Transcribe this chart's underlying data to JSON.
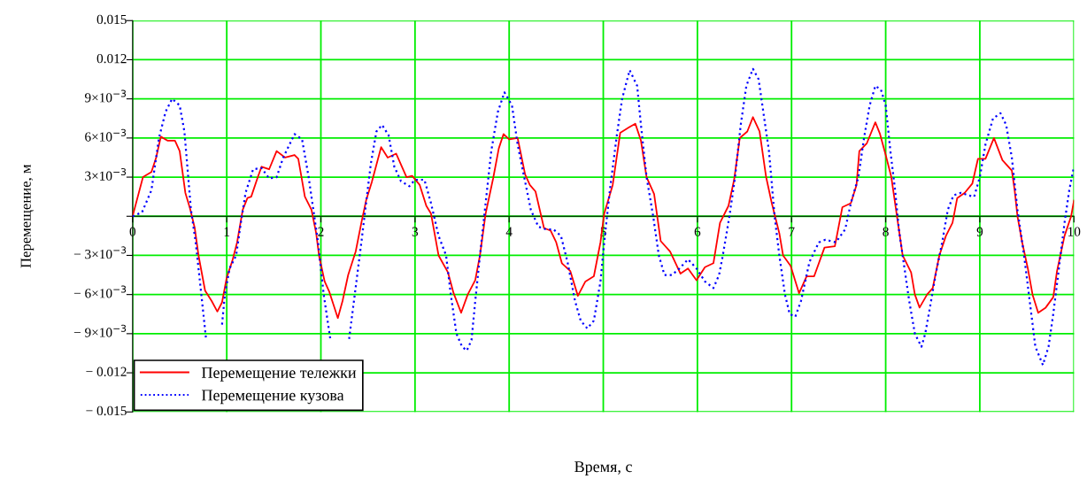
{
  "chart_data": {
    "type": "line",
    "xlabel": "Время, с",
    "ylabel": "Перемещение, м",
    "xlim": [
      0,
      10
    ],
    "xticks": [
      0,
      1,
      2,
      3,
      4,
      5,
      6,
      7,
      8,
      9,
      10
    ],
    "ylim": [
      -0.015,
      0.015
    ],
    "yticks": [
      {
        "value": -0.015,
        "label": "− 0.015"
      },
      {
        "value": -0.012,
        "label": "− 0.012"
      },
      {
        "value": -0.009,
        "label": "− 9×10$^{−3}$"
      },
      {
        "value": -0.006,
        "label": "− 6×10$^{−3}$"
      },
      {
        "value": -0.003,
        "label": "− 3×10$^{−3}$"
      },
      {
        "value": 0,
        "label": null
      },
      {
        "value": 0.003,
        "label": "3×10$^{−3}$"
      },
      {
        "value": 0.006,
        "label": "6×10$^{−3}$"
      },
      {
        "value": 0.009,
        "label": "9×10$^{−3}$"
      },
      {
        "value": 0.012,
        "label": "0.012"
      },
      {
        "value": 0.015,
        "label": "0.015"
      }
    ],
    "grid": true,
    "legend": "bottom left",
    "marker": "none",
    "series": [
      {
        "name": "Перемещение тележки",
        "color": "#ff0000",
        "line_style": "solid",
        "x": [
          0,
          0.11,
          0.2,
          0.25,
          0.3,
          0.37,
          0.45,
          0.5,
          0.56,
          0.61,
          0.66,
          0.7,
          0.77,
          0.84,
          0.9,
          0.95,
          1.0,
          1.06,
          1.11,
          1.17,
          1.22,
          1.26,
          1.33,
          1.37,
          1.45,
          1.53,
          1.62,
          1.72,
          1.76,
          1.83,
          1.9,
          1.95,
          1.98,
          2.04,
          2.09,
          2.18,
          2.23,
          2.29,
          2.37,
          2.43,
          2.48,
          2.54,
          2.64,
          2.71,
          2.8,
          2.91,
          2.97,
          3.05,
          3.12,
          3.17,
          3.25,
          3.35,
          3.41,
          3.49,
          3.56,
          3.64,
          3.69,
          3.75,
          3.83,
          3.89,
          3.94,
          4.0,
          4.09,
          4.17,
          4.22,
          4.28,
          4.37,
          4.44,
          4.5,
          4.56,
          4.65,
          4.73,
          4.81,
          4.9,
          4.97,
          5.01,
          5.1,
          5.18,
          5.27,
          5.34,
          5.4,
          5.46,
          5.54,
          5.61,
          5.71,
          5.82,
          5.9,
          5.99,
          6.08,
          6.17,
          6.24,
          6.33,
          6.39,
          6.45,
          6.53,
          6.59,
          6.66,
          6.73,
          6.79,
          6.87,
          6.91,
          6.99,
          7.08,
          7.16,
          7.24,
          7.35,
          7.46,
          7.54,
          7.63,
          7.69,
          7.72,
          7.8,
          7.89,
          7.94,
          8.0,
          8.06,
          8.12,
          8.18,
          8.27,
          8.31,
          8.36,
          8.44,
          8.5,
          8.57,
          8.64,
          8.71,
          8.76,
          8.84,
          8.92,
          8.98,
          9.06,
          9.15,
          9.24,
          9.34,
          9.37,
          9.4,
          9.45,
          9.51,
          9.56,
          9.62,
          9.7,
          9.78,
          9.82,
          9.9,
          9.97,
          10.0
        ],
        "values": [
          0,
          0.003,
          0.0034,
          0.0045,
          0.0061,
          0.0058,
          0.0058,
          0.005,
          0.0018,
          0.0006,
          -0.0009,
          -0.003,
          -0.0057,
          -0.0065,
          -0.0073,
          -0.0066,
          -0.0047,
          -0.0034,
          -0.002,
          0.0005,
          0.0014,
          0.0015,
          0.003,
          0.0038,
          0.0036,
          0.005,
          0.0045,
          0.0047,
          0.0044,
          0.0015,
          0.0005,
          -0.0013,
          -0.003,
          -0.005,
          -0.0058,
          -0.0078,
          -0.0065,
          -0.0045,
          -0.0027,
          -0.0005,
          0.0012,
          0.0026,
          0.0053,
          0.0045,
          0.0048,
          0.003,
          0.0031,
          0.0024,
          0.0008,
          0.0002,
          -0.003,
          -0.0043,
          -0.0059,
          -0.0074,
          -0.006,
          -0.0049,
          -0.003,
          0.0002,
          0.0029,
          0.0052,
          0.0063,
          0.0059,
          0.006,
          0.0032,
          0.0024,
          0.0019,
          -0.0009,
          -0.0011,
          -0.002,
          -0.0036,
          -0.0042,
          -0.0061,
          -0.005,
          -0.0046,
          -0.002,
          0.0002,
          0.0024,
          0.0064,
          0.0068,
          0.0071,
          0.0058,
          0.003,
          0.0017,
          -0.0019,
          -0.0027,
          -0.0044,
          -0.004,
          -0.0049,
          -0.0039,
          -0.0036,
          -0.0005,
          0.0008,
          0.0028,
          0.006,
          0.0065,
          0.0076,
          0.0065,
          0.003,
          0.001,
          -0.0013,
          -0.003,
          -0.0038,
          -0.0059,
          -0.0046,
          -0.0046,
          -0.0024,
          -0.0023,
          0.0007,
          0.001,
          0.0024,
          0.005,
          0.0056,
          0.0072,
          0.0063,
          0.0047,
          0.003,
          0.0,
          -0.003,
          -0.0043,
          -0.006,
          -0.007,
          -0.006,
          -0.0055,
          -0.003,
          -0.0015,
          -0.0005,
          0.0014,
          0.0018,
          0.0025,
          0.0044,
          0.0044,
          0.006,
          0.0043,
          0.0035,
          0.002,
          0.0,
          -0.002,
          -0.004,
          -0.006,
          -0.0074,
          -0.007,
          -0.0062,
          -0.0042,
          -0.0015,
          0.0,
          0.0012
        ]
      },
      {
        "name": "Перемещение кузова",
        "color": "#0000ff",
        "line_style": "dotted",
        "x": [
          0,
          0.1,
          0.2,
          0.28,
          0.35,
          0.42,
          0.5,
          0.55,
          0.62,
          0.67,
          0.73,
          0.78,
          0.85,
          0.9,
          0.95,
          0.98,
          1.03,
          1.1,
          1.15,
          1.2,
          1.28,
          1.37,
          1.45,
          1.53,
          1.6,
          1.72,
          1.8,
          1.87,
          1.93,
          1.97,
          2.03,
          2.1,
          2.17,
          2.25,
          2.3,
          2.36,
          2.43,
          2.48,
          2.53,
          2.59,
          2.65,
          2.72,
          2.78,
          2.85,
          2.94,
          3.0,
          3.1,
          3.17,
          3.25,
          3.33,
          3.38,
          3.44,
          3.5,
          3.55,
          3.6,
          3.64,
          3.69,
          3.75,
          3.81,
          3.88,
          3.95,
          4.03,
          4.09,
          4.16,
          4.23,
          4.31,
          4.39,
          4.47,
          4.55,
          4.62,
          4.7,
          4.76,
          4.83,
          4.9,
          4.97,
          5.01,
          5.07,
          5.14,
          5.2,
          5.28,
          5.36,
          5.4,
          5.46,
          5.53,
          5.59,
          5.65,
          5.73,
          5.81,
          5.9,
          5.99,
          6.08,
          6.17,
          6.23,
          6.27,
          6.34,
          6.4,
          6.46,
          6.52,
          6.59,
          6.65,
          6.69,
          6.76,
          6.82,
          6.87,
          6.93,
          6.98,
          7.04,
          7.1,
          7.19,
          7.29,
          7.36,
          7.47,
          7.57,
          7.63,
          7.71,
          7.77,
          7.83,
          7.89,
          7.95,
          8.0,
          8.05,
          8.1,
          8.14,
          8.19,
          8.25,
          8.31,
          8.38,
          8.42,
          8.47,
          8.53,
          8.6,
          8.66,
          8.72,
          8.8,
          8.88,
          8.94,
          9.0,
          9.06,
          9.14,
          9.22,
          9.28,
          9.34,
          9.4,
          9.47,
          9.53,
          9.59,
          9.67,
          9.73,
          9.78,
          9.84,
          9.9,
          9.95,
          10.0
        ],
        "values": [
          0,
          0.0003,
          0.002,
          0.006,
          0.008,
          0.009,
          0.0085,
          0.0065,
          0.0005,
          -0.002,
          -0.006,
          -0.0094,
          null,
          null,
          -0.0083,
          -0.006,
          -0.004,
          -0.003,
          -0.0005,
          0.0018,
          0.0036,
          0.0037,
          0.0029,
          0.003,
          0.0045,
          0.0063,
          0.0059,
          0.003,
          0.0,
          -0.002,
          -0.006,
          -0.0094,
          null,
          null,
          -0.0094,
          -0.006,
          -0.002,
          0.001,
          0.004,
          0.0065,
          0.007,
          0.0062,
          0.0038,
          0.0027,
          0.0023,
          0.0028,
          0.0028,
          0.001,
          -0.0015,
          -0.003,
          -0.006,
          -0.009,
          -0.01,
          -0.0103,
          -0.0095,
          -0.0065,
          -0.003,
          0.001,
          0.005,
          0.008,
          0.0095,
          0.0085,
          0.0055,
          0.003,
          0.0005,
          -0.0008,
          -0.001,
          -0.001,
          -0.0015,
          -0.0035,
          -0.0065,
          -0.008,
          -0.0086,
          -0.008,
          -0.005,
          -0.002,
          0.002,
          0.006,
          0.009,
          0.0112,
          0.01,
          0.007,
          0.003,
          0.0,
          -0.003,
          -0.0045,
          -0.0045,
          -0.004,
          -0.0033,
          -0.004,
          -0.005,
          -0.0055,
          -0.0045,
          -0.003,
          0.0,
          0.003,
          0.007,
          0.01,
          0.0113,
          0.0105,
          0.0085,
          0.005,
          0.0,
          -0.003,
          -0.006,
          -0.0075,
          -0.0077,
          -0.0065,
          -0.0035,
          -0.002,
          -0.0018,
          -0.002,
          -0.001,
          0.001,
          0.003,
          0.006,
          0.0085,
          0.01,
          0.0097,
          0.0085,
          0.005,
          0.002,
          -0.001,
          -0.0035,
          -0.0065,
          -0.009,
          -0.01,
          -0.009,
          -0.007,
          -0.0045,
          -0.002,
          0.0005,
          0.0016,
          0.0018,
          0.0016,
          0.0015,
          0.003,
          0.0055,
          0.0075,
          0.0079,
          0.007,
          0.0045,
          0.0005,
          -0.003,
          -0.0065,
          -0.01,
          -0.0114,
          -0.01,
          -0.0075,
          -0.004,
          -0.0005,
          0.002,
          0.0038
        ]
      }
    ]
  }
}
